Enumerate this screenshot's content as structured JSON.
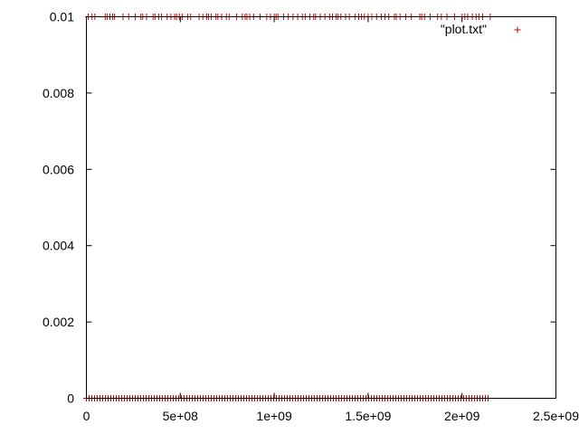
{
  "chart_data": {
    "type": "scatter",
    "xlim": [
      0,
      2500000000
    ],
    "ylim": [
      0,
      0.01
    ],
    "x_ticks": [
      {
        "value": 0,
        "label": "0"
      },
      {
        "value": 500000000,
        "label": "5e+08"
      },
      {
        "value": 1000000000,
        "label": "1e+09"
      },
      {
        "value": 1500000000,
        "label": "1.5e+09"
      },
      {
        "value": 2000000000,
        "label": "2e+09"
      },
      {
        "value": 2500000000,
        "label": "2.5e+09"
      }
    ],
    "y_ticks": [
      {
        "value": 0,
        "label": "0"
      },
      {
        "value": 0.002,
        "label": "0.002"
      },
      {
        "value": 0.004,
        "label": "0.004"
      },
      {
        "value": 0.006,
        "label": "0.006"
      },
      {
        "value": 0.008,
        "label": "0.008"
      },
      {
        "value": 0.01,
        "label": "0.01"
      }
    ],
    "grid": false,
    "legend": {
      "placement": "top-right"
    },
    "series": [
      {
        "name": "\"plot.txt\"",
        "color": "#cc0000",
        "marker": "plus",
        "points_at_0": {
          "y": 0,
          "x_range": [
            0,
            2150000000
          ],
          "dense": true
        },
        "points_at_001": {
          "y": 0.01,
          "x": [
            10000000,
            30000000,
            45000000,
            100000000,
            110000000,
            125000000,
            140000000,
            150000000,
            195000000,
            225000000,
            260000000,
            290000000,
            300000000,
            320000000,
            355000000,
            365000000,
            385000000,
            400000000,
            430000000,
            450000000,
            470000000,
            480000000,
            495000000,
            510000000,
            540000000,
            555000000,
            600000000,
            620000000,
            640000000,
            650000000,
            665000000,
            690000000,
            700000000,
            720000000,
            745000000,
            760000000,
            800000000,
            830000000,
            845000000,
            855000000,
            870000000,
            890000000,
            925000000,
            960000000,
            980000000,
            1000000000,
            1010000000,
            1020000000,
            1050000000,
            1075000000,
            1100000000,
            1125000000,
            1150000000,
            1165000000,
            1190000000,
            1210000000,
            1220000000,
            1245000000,
            1270000000,
            1295000000,
            1310000000,
            1330000000,
            1340000000,
            1355000000,
            1380000000,
            1400000000,
            1430000000,
            1450000000,
            1465000000,
            1480000000,
            1500000000,
            1520000000,
            1545000000,
            1570000000,
            1590000000,
            1610000000,
            1640000000,
            1650000000,
            1670000000,
            1700000000,
            1730000000,
            1775000000,
            1785000000,
            1800000000,
            1830000000,
            1870000000,
            1890000000,
            1920000000,
            1960000000,
            2000000000,
            2015000000,
            2030000000,
            2055000000,
            2075000000,
            2090000000,
            2110000000,
            2150000000
          ]
        }
      }
    ]
  }
}
